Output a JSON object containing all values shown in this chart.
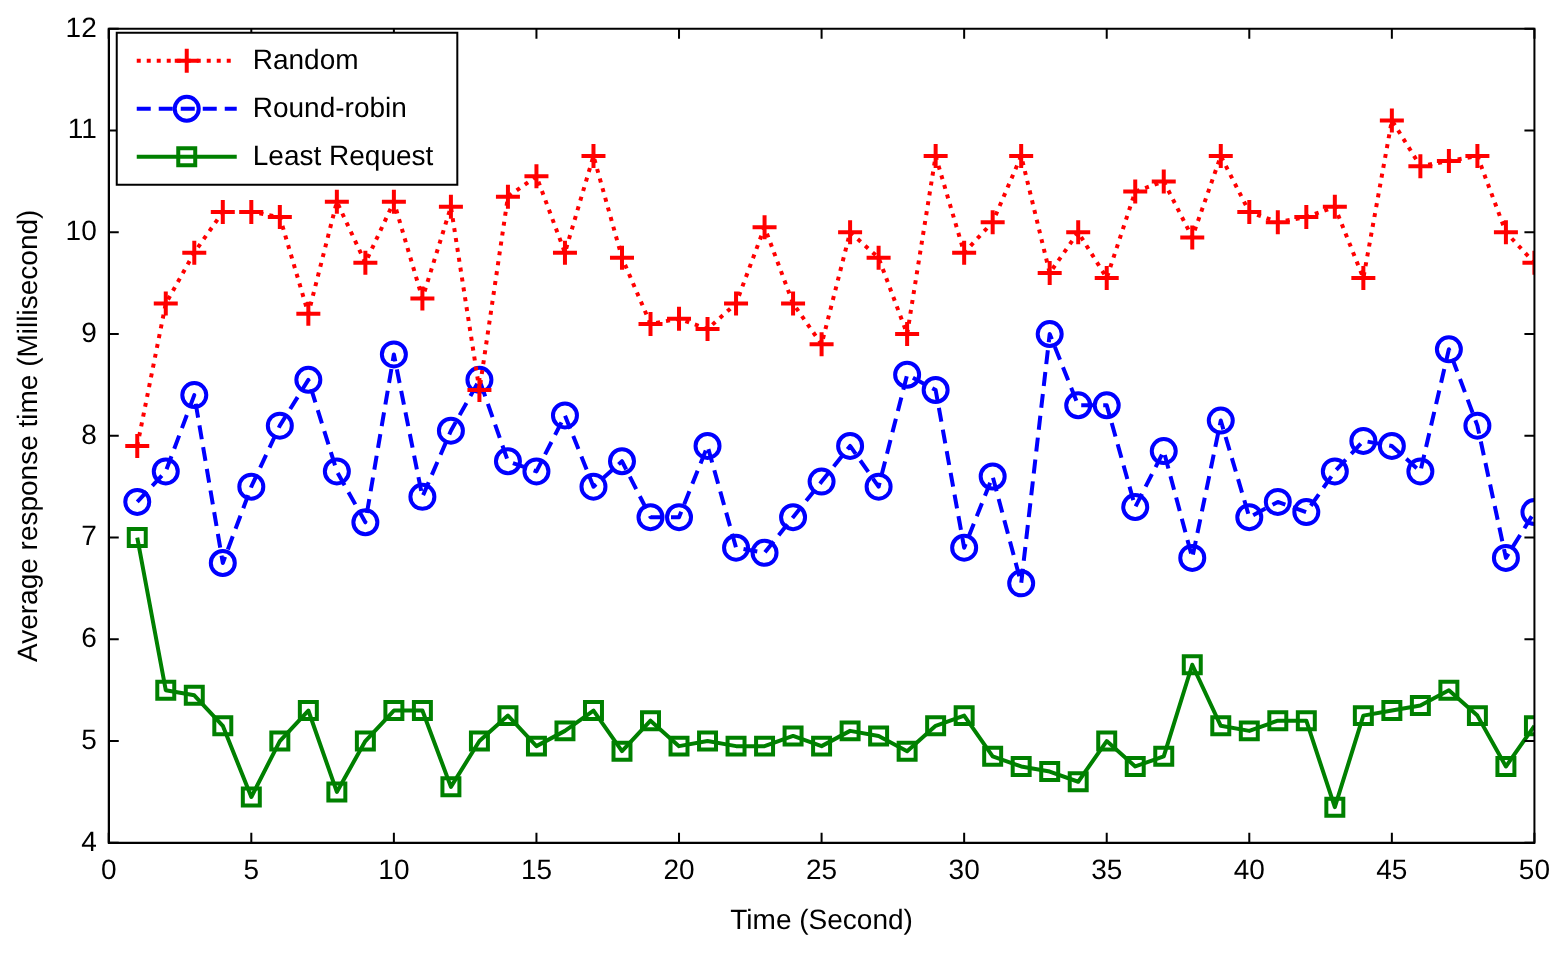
{
  "chart_data": {
    "type": "line",
    "xlabel": "Time (Second)",
    "ylabel": "Average response time (Millisecond)",
    "x": [
      1,
      2,
      3,
      4,
      5,
      6,
      7,
      8,
      9,
      10,
      11,
      12,
      13,
      14,
      15,
      16,
      17,
      18,
      19,
      20,
      21,
      22,
      23,
      24,
      25,
      26,
      27,
      28,
      29,
      30,
      31,
      32,
      33,
      34,
      35,
      36,
      37,
      38,
      39,
      40,
      41,
      42,
      43,
      44,
      45,
      46,
      47,
      48,
      49,
      50
    ],
    "xlim": [
      0,
      50
    ],
    "xticks": [
      0,
      5,
      10,
      15,
      20,
      25,
      30,
      35,
      40,
      45,
      50
    ],
    "ylim": [
      4,
      12
    ],
    "yticks": [
      4,
      5,
      6,
      7,
      8,
      9,
      10,
      11,
      12
    ],
    "grid": false,
    "legend": "top left",
    "series": [
      {
        "name": "Random",
        "color": "#ff0000",
        "marker": "cross",
        "line_style": "dotted",
        "values": [
          7.9,
          9.3,
          9.8,
          10.2,
          10.2,
          10.15,
          9.2,
          10.3,
          9.7,
          10.3,
          9.35,
          10.25,
          8.45,
          10.35,
          10.55,
          9.8,
          10.75,
          9.75,
          9.1,
          9.15,
          9.05,
          9.3,
          10.05,
          9.3,
          8.9,
          10.0,
          9.75,
          9.0,
          10.75,
          9.8,
          10.1,
          10.75,
          9.6,
          10.0,
          9.55,
          10.4,
          10.5,
          9.95,
          10.75,
          10.2,
          10.1,
          10.15,
          10.25,
          9.55,
          11.1,
          10.65,
          10.7,
          10.75,
          10.0,
          9.7
        ]
      },
      {
        "name": "Round-robin",
        "color": "#0000ff",
        "marker": "circle",
        "line_style": "dashed",
        "values": [
          7.35,
          7.65,
          8.4,
          6.75,
          7.5,
          8.1,
          8.55,
          7.65,
          7.15,
          8.8,
          7.4,
          8.05,
          8.55,
          7.75,
          7.65,
          8.2,
          7.5,
          7.75,
          7.2,
          7.2,
          7.9,
          6.9,
          6.85,
          7.2,
          7.55,
          7.9,
          7.5,
          8.6,
          8.45,
          6.9,
          7.6,
          6.55,
          9.0,
          8.3,
          8.3,
          7.3,
          7.85,
          6.8,
          8.15,
          7.2,
          7.35,
          7.25,
          7.65,
          7.95,
          7.9,
          7.65,
          8.85,
          8.1,
          6.8,
          7.25
        ]
      },
      {
        "name": "Least Request",
        "color": "#008000",
        "marker": "square",
        "line_style": "solid",
        "values": [
          7.0,
          5.5,
          5.45,
          5.15,
          4.45,
          5.0,
          5.3,
          4.5,
          5.0,
          5.3,
          5.3,
          4.55,
          5.0,
          5.25,
          4.95,
          5.1,
          5.3,
          4.9,
          5.2,
          4.95,
          5.0,
          4.95,
          4.95,
          5.05,
          4.95,
          5.1,
          5.05,
          4.9,
          5.15,
          5.25,
          4.85,
          4.75,
          4.7,
          4.6,
          5.0,
          4.75,
          4.85,
          5.75,
          5.15,
          5.1,
          5.2,
          5.2,
          4.35,
          5.25,
          5.3,
          5.35,
          5.5,
          5.25,
          4.75,
          5.15
        ]
      }
    ]
  }
}
